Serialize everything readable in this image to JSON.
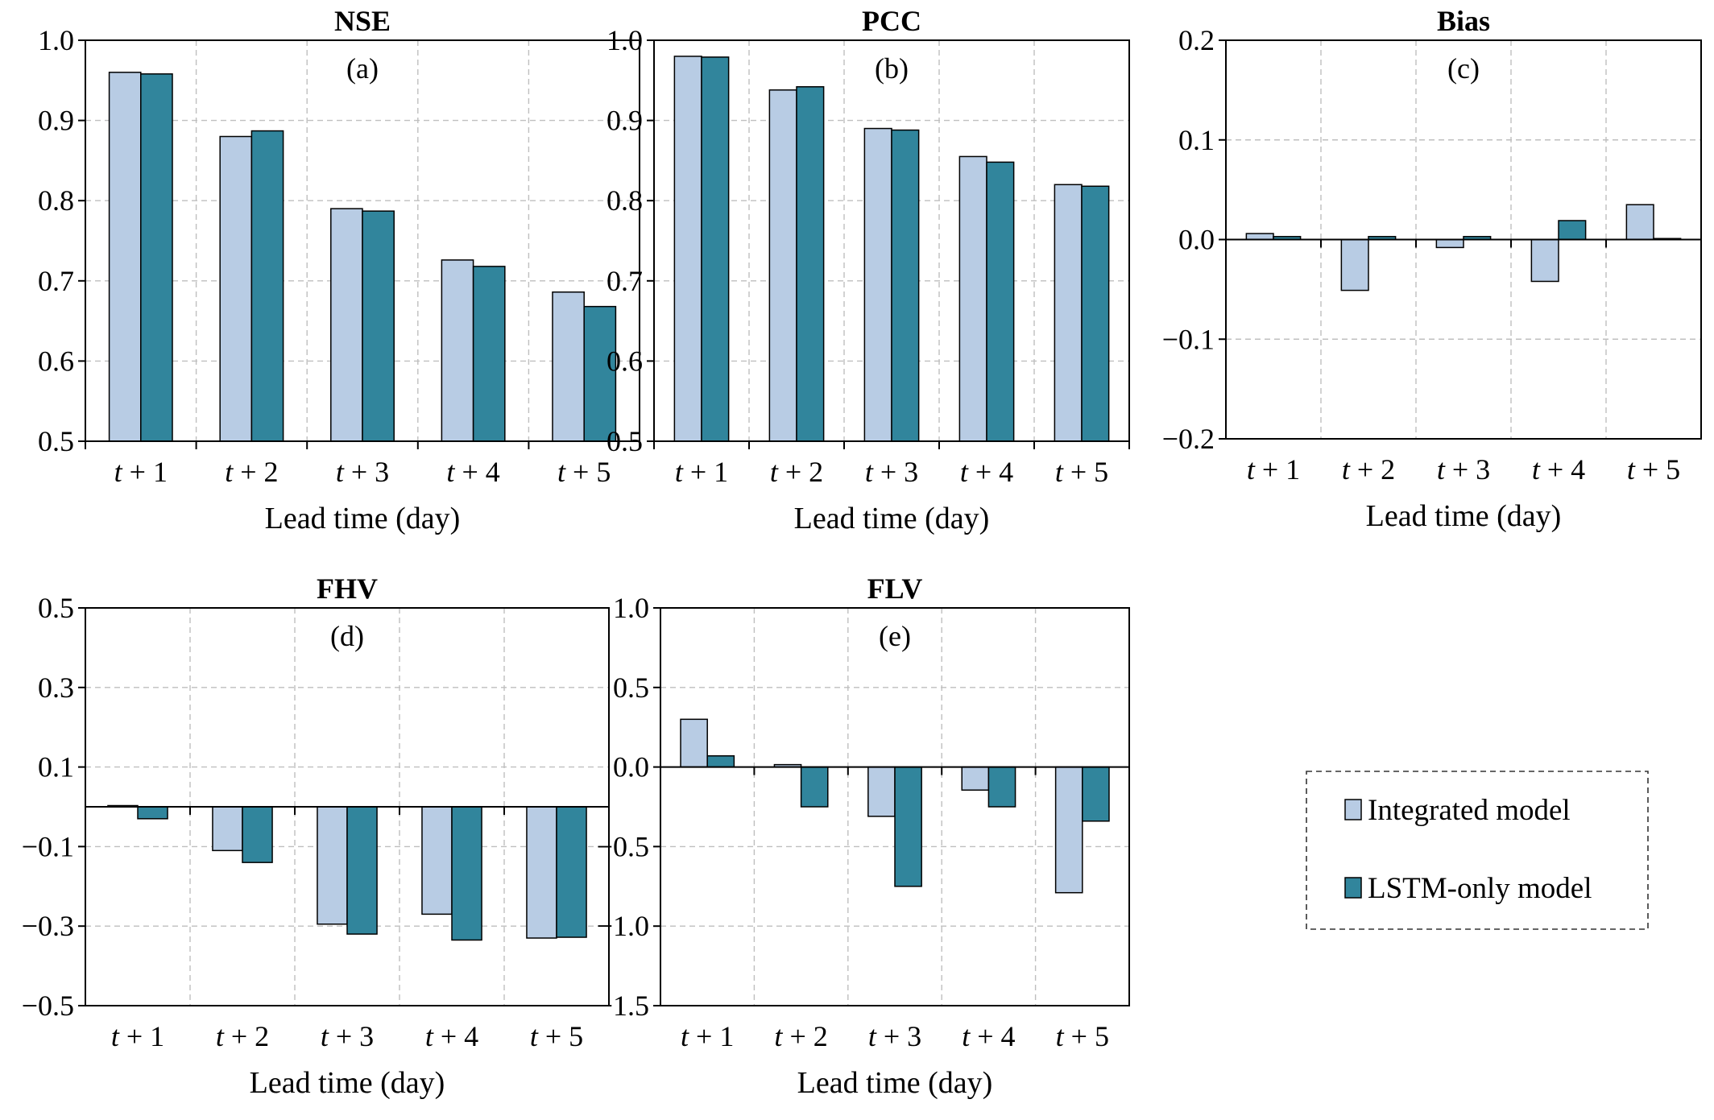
{
  "legend": {
    "items": [
      {
        "label": "Integrated model",
        "color": "#b8cce4"
      },
      {
        "label": "LSTM-only model",
        "color": "#31859c"
      }
    ]
  },
  "chart_data": [
    {
      "type": "bar",
      "title": "NSE",
      "tag": "(a)",
      "xlabel": "Lead time (day)",
      "ylabel": "",
      "categories": [
        "t + 1",
        "t + 2",
        "t + 3",
        "t + 4",
        "t + 5"
      ],
      "ylim": [
        0.5,
        1.0
      ],
      "yticks": [
        0.5,
        0.6,
        0.7,
        0.8,
        0.9,
        1.0
      ],
      "ytick_labels": [
        "0.5",
        "0.6",
        "0.7",
        "0.8",
        "0.9",
        "1.0"
      ],
      "grid": true,
      "series": [
        {
          "name": "Integrated model",
          "values": [
            0.96,
            0.88,
            0.79,
            0.726,
            0.686
          ]
        },
        {
          "name": "LSTM-only model",
          "values": [
            0.958,
            0.887,
            0.787,
            0.718,
            0.668
          ]
        }
      ]
    },
    {
      "type": "bar",
      "title": "PCC",
      "tag": "(b)",
      "xlabel": "Lead time (day)",
      "ylabel": "",
      "categories": [
        "t + 1",
        "t + 2",
        "t + 3",
        "t + 4",
        "t + 5"
      ],
      "ylim": [
        0.5,
        1.0
      ],
      "yticks": [
        0.5,
        0.6,
        0.7,
        0.8,
        0.9,
        1.0
      ],
      "ytick_labels": [
        "0.5",
        "0.6",
        "0.7",
        "0.8",
        "0.9",
        "1.0"
      ],
      "grid": true,
      "series": [
        {
          "name": "Integrated model",
          "values": [
            0.98,
            0.938,
            0.89,
            0.855,
            0.82
          ]
        },
        {
          "name": "LSTM-only model",
          "values": [
            0.979,
            0.942,
            0.888,
            0.848,
            0.818
          ]
        }
      ]
    },
    {
      "type": "bar",
      "title": "Bias",
      "tag": "(c)",
      "xlabel": "Lead time (day)",
      "ylabel": "",
      "categories": [
        "t + 1",
        "t + 2",
        "t + 3",
        "t + 4",
        "t + 5"
      ],
      "ylim": [
        -0.2,
        0.2
      ],
      "yticks": [
        -0.2,
        -0.1,
        0.0,
        0.1,
        0.2
      ],
      "ytick_labels": [
        "−0.2",
        "−0.1",
        "0.0",
        "0.1",
        "0.2"
      ],
      "grid": true,
      "series": [
        {
          "name": "Integrated model",
          "values": [
            0.006,
            -0.051,
            -0.008,
            -0.042,
            0.035
          ]
        },
        {
          "name": "LSTM-only model",
          "values": [
            0.003,
            0.003,
            0.003,
            0.019,
            0.001
          ]
        }
      ]
    },
    {
      "type": "bar",
      "title": "FHV",
      "tag": "(d)",
      "xlabel": "Lead time (day)",
      "ylabel": "",
      "categories": [
        "t + 1",
        "t + 2",
        "t + 3",
        "t + 4",
        "t + 5"
      ],
      "ylim": [
        -0.5,
        0.5
      ],
      "yticks": [
        -0.5,
        -0.3,
        -0.1,
        0.1,
        0.3,
        0.5
      ],
      "ytick_labels": [
        "−0.5",
        "−0.3",
        "−0.1",
        "0.1",
        "0.3",
        "0.5"
      ],
      "grid": true,
      "series": [
        {
          "name": "Integrated model",
          "values": [
            0.003,
            -0.11,
            -0.295,
            -0.27,
            -0.33
          ]
        },
        {
          "name": "LSTM-only model",
          "values": [
            -0.03,
            -0.14,
            -0.32,
            -0.335,
            -0.328
          ]
        }
      ]
    },
    {
      "type": "bar",
      "title": "FLV",
      "tag": "(e)",
      "xlabel": "Lead time (day)",
      "ylabel": "",
      "categories": [
        "t + 1",
        "t + 2",
        "t + 3",
        "t + 4",
        "t + 5"
      ],
      "ylim": [
        -1.5,
        1.0
      ],
      "yticks": [
        -1.5,
        -1.0,
        -0.5,
        0.0,
        0.5,
        1.0
      ],
      "ytick_labels": [
        "−1.5",
        "−1.0",
        "−0.5",
        "0.0",
        "0.5",
        "1.0"
      ],
      "grid": true,
      "series": [
        {
          "name": "Integrated model",
          "values": [
            0.3,
            0.015,
            -0.31,
            -0.145,
            -0.79
          ]
        },
        {
          "name": "LSTM-only model",
          "values": [
            0.07,
            -0.25,
            -0.75,
            -0.25,
            -0.34
          ]
        }
      ]
    }
  ]
}
